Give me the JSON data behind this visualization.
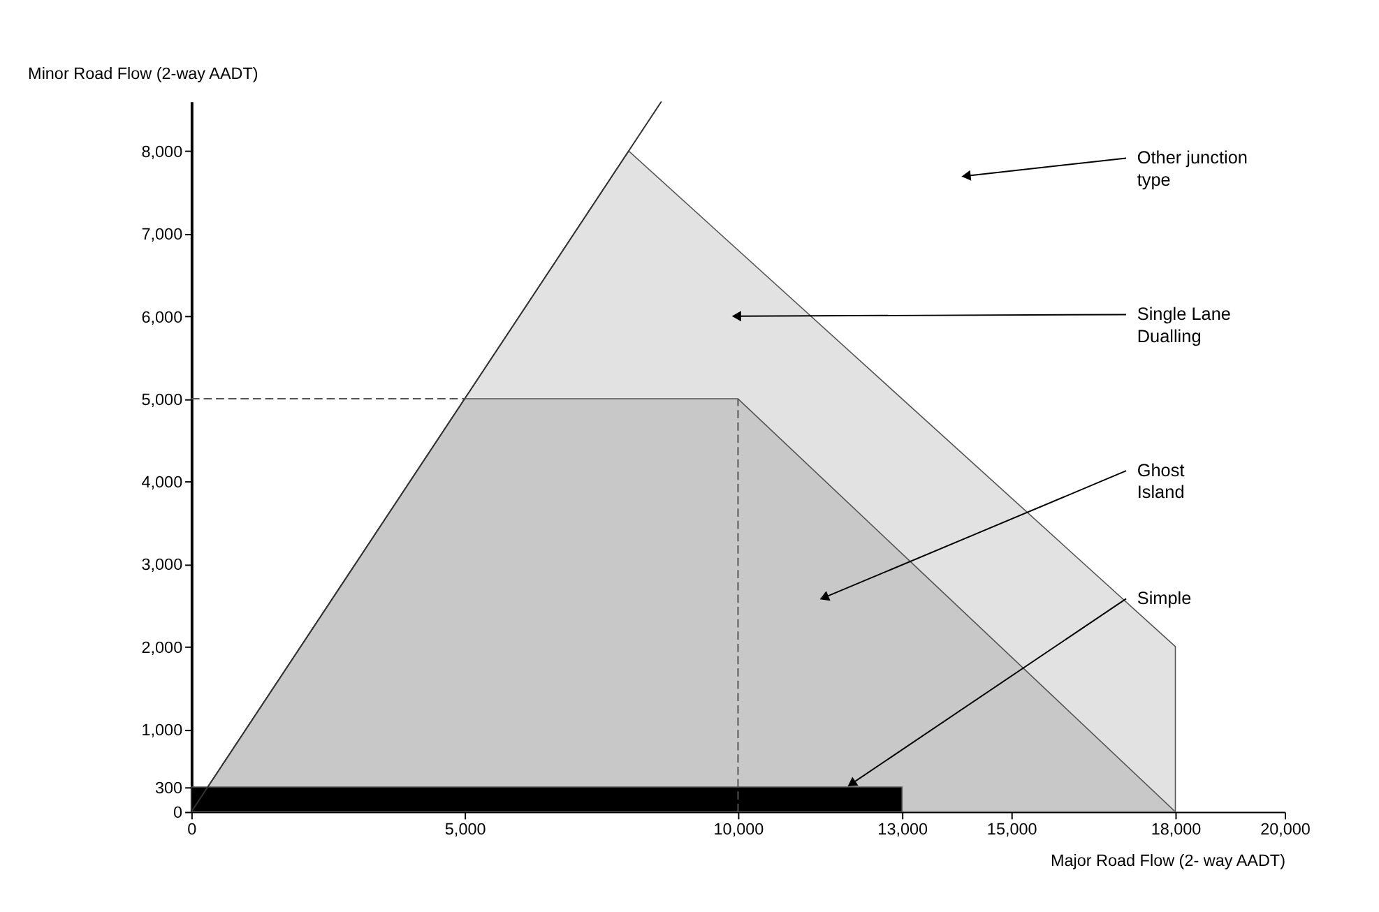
{
  "chart_data": {
    "type": "area",
    "xlabel": "Major Road Flow (2- way AADT)",
    "ylabel": "Minor Road Flow (2-way AADT)",
    "series": [
      {
        "color": "#e2e2e2",
        "x": [
          0,
          8000,
          18000,
          18000
        ],
        "values": [
          0,
          8000,
          2000,
          0
        ]
      },
      {
        "color": "#c8c8c8",
        "x": [
          0,
          5000,
          10000,
          18000
        ],
        "values": [
          0,
          5000,
          5000,
          0
        ]
      },
      {
        "color": "#000000",
        "x": [
          0,
          13000
        ],
        "values": [
          300,
          300
        ]
      },
      {
        "type": "line",
        "color": "#333333",
        "line_style": "solid",
        "x": [
          0,
          8600
        ],
        "values": [
          0,
          8600
        ]
      },
      {
        "type": "line",
        "color": "#555555",
        "line_style": "dashed",
        "x": [
          0,
          5000
        ],
        "values": [
          5000,
          5000
        ]
      },
      {
        "type": "line",
        "color": "#555555",
        "line_style": "dashed",
        "x": [
          10000,
          10000
        ],
        "values": [
          0,
          5000
        ]
      }
    ],
    "annotations": [
      {
        "text": "Other junction type",
        "x": 14200,
        "y": 7700
      },
      {
        "text": "Single Lane Dualling",
        "x": 10000,
        "y": 6000
      },
      {
        "text": "Ghost Island",
        "x": 11600,
        "y": 2600
      },
      {
        "text": "Simple",
        "x": 12100,
        "y": 350
      }
    ],
    "xlim": [
      0,
      20000
    ],
    "xticks": [
      0,
      {
        "value": 5000,
        "label": "5,000"
      },
      {
        "value": 10000,
        "label": "10,000"
      },
      {
        "value": 13000,
        "label": "13,000"
      },
      {
        "value": 15000,
        "label": "15,000"
      },
      {
        "value": 18000,
        "label": "18,000"
      },
      {
        "value": 20000,
        "label": "20,000"
      }
    ],
    "ylim": [
      0,
      8600
    ],
    "yticks": [
      0,
      300,
      {
        "value": 1000,
        "label": "1,000"
      },
      {
        "value": 2000,
        "label": "2,000"
      },
      {
        "value": 3000,
        "label": "3,000"
      },
      {
        "value": 4000,
        "label": "4,000"
      },
      {
        "value": 5000,
        "label": "5,000"
      },
      {
        "value": 6000,
        "label": "6,000"
      },
      {
        "value": 7000,
        "label": "7,000"
      },
      {
        "value": 8000,
        "label": "8,000"
      }
    ],
    "grid": false
  }
}
